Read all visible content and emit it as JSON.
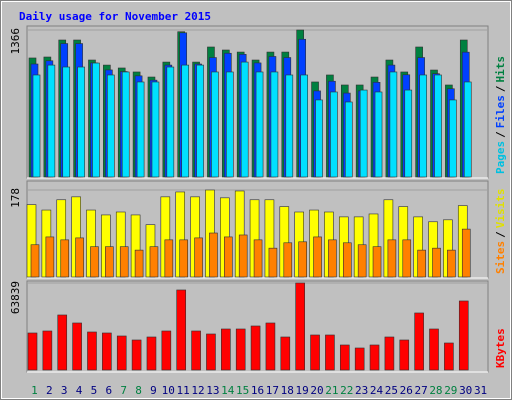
{
  "chart_data": [
    {
      "type": "bar",
      "title": "Daily usage for November 2015",
      "legend_separator": "/",
      "ylim": [
        0,
        1366
      ],
      "yticks": [
        1366
      ],
      "series": [
        {
          "name": "Pages",
          "color": "#00e0ff",
          "label_color": "#00c0e0",
          "values": [
            948,
            1040,
            1022,
            1022,
            1059,
            948,
            976,
            883,
            883,
            1022,
            1040,
            1040,
            976,
            976,
            1068,
            976,
            976,
            948,
            948,
            716,
            790,
            697,
            808,
            790,
            976,
            808,
            948,
            948,
            716,
            883,
            null
          ]
        },
        {
          "name": "Files",
          "color": "#0040ff",
          "label_color": "#0040ff",
          "values": [
            1050,
            1080,
            1240,
            1240,
            1060,
            995,
            980,
            940,
            900,
            1040,
            1340,
            1050,
            1110,
            1150,
            1140,
            1060,
            1120,
            1110,
            1280,
            800,
            890,
            780,
            800,
            880,
            1040,
            950,
            1110,
            960,
            820,
            1160,
            null
          ]
        },
        {
          "name": "Hits",
          "color": "#008040",
          "label_color": "#008040",
          "values": [
            1106,
            1115,
            1273,
            1273,
            1087,
            1040,
            1013,
            976,
            929,
            1068,
            1350,
            1068,
            1208,
            1180,
            1161,
            1087,
            1161,
            1161,
            1366,
            883,
            948,
            855,
            855,
            929,
            1087,
            976,
            1208,
            994,
            855,
            1273,
            null
          ]
        }
      ]
    },
    {
      "type": "bar",
      "legend_separator": "/",
      "ylim": [
        0,
        178
      ],
      "yticks": [
        178
      ],
      "series": [
        {
          "name": "Sites",
          "color": "#ff8000",
          "label_color": "#ff8000",
          "values": [
            66,
            82,
            76,
            80,
            62,
            62,
            62,
            55,
            62,
            76,
            76,
            80,
            90,
            82,
            86,
            76,
            59,
            70,
            72,
            82,
            76,
            70,
            66,
            62,
            76,
            76,
            55,
            59,
            55,
            98,
            null
          ]
        },
        {
          "name": "Visits",
          "color": "#ffff00",
          "label_color": "#e0e000",
          "values": [
            148,
            137,
            158,
            164,
            137,
            127,
            133,
            127,
            107,
            164,
            174,
            164,
            178,
            162,
            176,
            158,
            158,
            144,
            133,
            137,
            133,
            123,
            123,
            129,
            158,
            144,
            123,
            113,
            117,
            146,
            null
          ]
        }
      ]
    },
    {
      "type": "bar",
      "ylim": [
        0,
        63839
      ],
      "yticks": [
        63839
      ],
      "categories": [
        "1",
        "2",
        "3",
        "4",
        "5",
        "6",
        "7",
        "8",
        "9",
        "10",
        "11",
        "12",
        "13",
        "14",
        "15",
        "16",
        "17",
        "18",
        "19",
        "20",
        "21",
        "22",
        "23",
        "24",
        "25",
        "26",
        "27",
        "28",
        "29",
        "30",
        "31"
      ],
      "category_colors": [
        "#008040",
        "#000080",
        "#000080",
        "#000080",
        "#000080",
        "#000080",
        "#008040",
        "#008040",
        "#000080",
        "#000080",
        "#000080",
        "#000080",
        "#000080",
        "#008040",
        "#008040",
        "#000080",
        "#000080",
        "#000080",
        "#000080",
        "#000080",
        "#008040",
        "#008040",
        "#000080",
        "#000080",
        "#000080",
        "#000080",
        "#000080",
        "#008040",
        "#008040",
        "#000080",
        "#000080"
      ],
      "series": [
        {
          "name": "KBytes",
          "color": "#ff0000",
          "label_color": "#ff0000",
          "values": [
            27158,
            28626,
            40370,
            34498,
            27892,
            27158,
            24956,
            22020,
            24222,
            28626,
            58720,
            28626,
            26424,
            30094,
            30094,
            32296,
            34498,
            24222,
            63839,
            25690,
            25690,
            18350,
            16148,
            18350,
            24222,
            22020,
            41838,
            30094,
            19818,
            50646,
            null
          ]
        }
      ]
    }
  ]
}
